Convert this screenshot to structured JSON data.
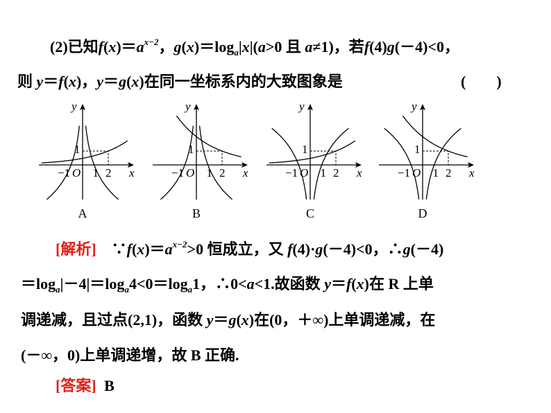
{
  "question": {
    "lines": [
      [
        {
          "t": "(2)已知"
        },
        {
          "t": "f",
          "s": "i"
        },
        {
          "t": "("
        },
        {
          "t": "x",
          "s": "i"
        },
        {
          "t": ")＝"
        },
        {
          "t": "a",
          "s": "i"
        },
        {
          "t": "x−2",
          "s": "sup"
        },
        {
          "t": "，"
        },
        {
          "t": "g",
          "s": "i"
        },
        {
          "t": "("
        },
        {
          "t": "x",
          "s": "i"
        },
        {
          "t": ")＝log"
        },
        {
          "t": "a",
          "s": "sub"
        },
        {
          "t": "|"
        },
        {
          "t": "x",
          "s": "i"
        },
        {
          "t": "|("
        },
        {
          "t": "a",
          "s": "i"
        },
        {
          "t": ">0 且 "
        },
        {
          "t": "a",
          "s": "i"
        },
        {
          "t": "≠1)，若"
        },
        {
          "t": "f",
          "s": "i"
        },
        {
          "t": "(4)"
        },
        {
          "t": "g",
          "s": "i"
        },
        {
          "t": "(－4)<0，"
        }
      ],
      [
        {
          "t": "则 "
        },
        {
          "t": "y",
          "s": "i"
        },
        {
          "t": "＝"
        },
        {
          "t": "f",
          "s": "i"
        },
        {
          "t": "("
        },
        {
          "t": "x",
          "s": "i"
        },
        {
          "t": ")，"
        },
        {
          "t": "y",
          "s": "i"
        },
        {
          "t": "＝"
        },
        {
          "t": "g",
          "s": "i"
        },
        {
          "t": "("
        },
        {
          "t": "x",
          "s": "i"
        },
        {
          "t": ")在同一坐标系内的大致图象是"
        }
      ]
    ],
    "blank": "(　　)"
  },
  "options": [
    {
      "label": "A",
      "f": "increasing",
      "g": "log_base_less_than_1"
    },
    {
      "label": "B",
      "f": "decreasing",
      "g": "log_base_less_than_1"
    },
    {
      "label": "C",
      "f": "increasing",
      "g": "log_base_greater_than_1"
    },
    {
      "label": "D",
      "f": "decreasing",
      "g": "log_base_greater_than_1"
    }
  ],
  "axis_labels": {
    "x": "x",
    "y": "y",
    "origin": "O",
    "neg1": "−1",
    "one": "1",
    "two": "2",
    "y_one": "1"
  },
  "analysis": {
    "lines": [
      [
        {
          "t": "[解析]",
          "s": "red"
        },
        {
          "t": "　∵"
        },
        {
          "t": "f",
          "s": "i"
        },
        {
          "t": "("
        },
        {
          "t": "x",
          "s": "i"
        },
        {
          "t": ")＝"
        },
        {
          "t": "a",
          "s": "i"
        },
        {
          "t": "x−2",
          "s": "sup"
        },
        {
          "t": ">0 恒成立，又 "
        },
        {
          "t": "f",
          "s": "i"
        },
        {
          "t": "(4)·"
        },
        {
          "t": "g",
          "s": "i"
        },
        {
          "t": "(－4)<0，∴"
        },
        {
          "t": "g",
          "s": "i"
        },
        {
          "t": "(－4)"
        }
      ],
      [
        {
          "t": "＝log"
        },
        {
          "t": "a",
          "s": "sub"
        },
        {
          "t": "|－4|＝log"
        },
        {
          "t": "a",
          "s": "sub"
        },
        {
          "t": "4<0＝log"
        },
        {
          "t": "a",
          "s": "sub"
        },
        {
          "t": "1，∴0<"
        },
        {
          "t": "a",
          "s": "i"
        },
        {
          "t": "<1.故函数 "
        },
        {
          "t": "y",
          "s": "i"
        },
        {
          "t": "＝"
        },
        {
          "t": "f",
          "s": "i"
        },
        {
          "t": "("
        },
        {
          "t": "x",
          "s": "i"
        },
        {
          "t": ")在 R 上单"
        }
      ],
      [
        {
          "t": "调递减，且过点(2,1)，函数 "
        },
        {
          "t": "y",
          "s": "i"
        },
        {
          "t": "＝"
        },
        {
          "t": "g",
          "s": "i"
        },
        {
          "t": "("
        },
        {
          "t": "x",
          "s": "i"
        },
        {
          "t": ")在(0，＋∞)上单调递减，在"
        }
      ],
      [
        {
          "t": "(－∞，0)上单调递增，故 B 正确."
        }
      ]
    ]
  },
  "answer": {
    "label": "[答案]",
    "value": "B"
  },
  "colors": {
    "accent_red": "#e0201c",
    "text": "#000000"
  }
}
